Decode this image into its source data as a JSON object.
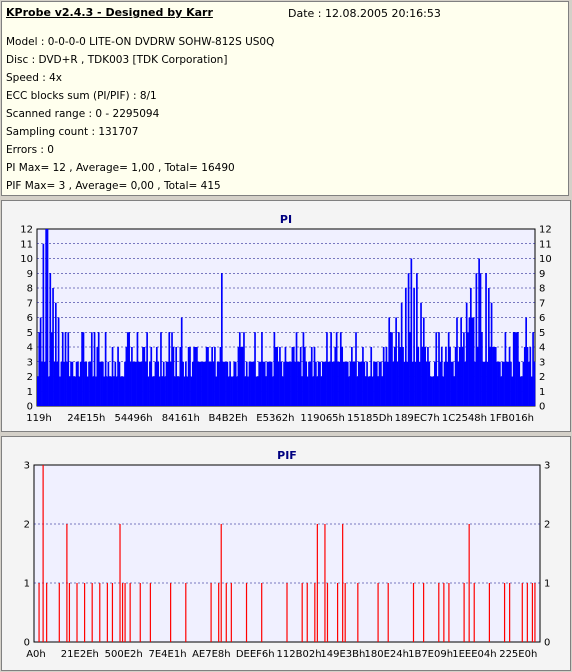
{
  "header": {
    "title": "KProbe v2.4.3 - Designed by Karr",
    "date": "Date : 12.08.2005 20:16:53",
    "lines": [
      "Model : 0-0-0-0 LITE-ON DVDRW SOHW-812S  US0Q",
      "Disc : DVD+R , TDK003 [TDK Corporation]",
      "Speed : 4x",
      "ECC blocks sum (PI/PIF) : 8/1",
      "Scanned range : 0 - 2295094",
      "Sampling count : 131707",
      "Errors : 0",
      "PI Max= 12 , Average= 1,00 , Total= 16490",
      "PIF Max= 3 , Average= 0,00 , Total= 415"
    ]
  },
  "colors": {
    "pi": "#0000ff",
    "pif": "#ff0000",
    "plot_bg": "#f0f0ff",
    "grid": "#000080"
  },
  "chart_data": [
    {
      "type": "bar",
      "title": "PI",
      "xlabel": "",
      "ylabel": "",
      "ylim": [
        0,
        12
      ],
      "yticks": [
        0,
        1,
        2,
        3,
        4,
        5,
        6,
        7,
        8,
        9,
        10,
        11,
        12
      ],
      "xtick_labels": [
        "119h",
        "24E15h",
        "54496h",
        "84161h",
        "B4B2Eh",
        "E5362h",
        "119065h",
        "15185Dh",
        "189EC7h",
        "1C2548h",
        "1FB016h"
      ],
      "grid": true,
      "baseline": 3,
      "n_samples": 360,
      "segments": [
        {
          "from": 0.0,
          "to": 0.06,
          "base": 3,
          "peaks": [
            [
              0.005,
              6
            ],
            [
              0.012,
              11
            ],
            [
              0.018,
              12
            ],
            [
              0.025,
              9
            ],
            [
              0.031,
              8
            ],
            [
              0.036,
              7
            ],
            [
              0.042,
              6
            ],
            [
              0.05,
              5
            ],
            [
              0.055,
              5
            ]
          ]
        },
        {
          "from": 0.06,
          "to": 0.7,
          "base": 3,
          "peaks": [
            [
              0.09,
              5
            ],
            [
              0.12,
              4
            ],
            [
              0.16,
              4
            ],
            [
              0.2,
              5
            ],
            [
              0.24,
              4
            ],
            [
              0.27,
              5
            ],
            [
              0.29,
              6
            ],
            [
              0.34,
              4
            ],
            [
              0.37,
              9
            ],
            [
              0.41,
              4
            ],
            [
              0.45,
              5
            ],
            [
              0.48,
              4
            ],
            [
              0.52,
              4
            ],
            [
              0.55,
              4
            ],
            [
              0.58,
              5
            ],
            [
              0.61,
              4
            ],
            [
              0.64,
              5
            ],
            [
              0.67,
              4
            ]
          ]
        },
        {
          "from": 0.7,
          "to": 0.78,
          "base": 4,
          "peaks": [
            [
              0.71,
              5
            ],
            [
              0.72,
              6
            ],
            [
              0.73,
              7
            ],
            [
              0.74,
              8
            ],
            [
              0.745,
              9
            ],
            [
              0.75,
              10
            ],
            [
              0.755,
              8
            ],
            [
              0.76,
              9
            ],
            [
              0.77,
              7
            ],
            [
              0.775,
              6
            ]
          ]
        },
        {
          "from": 0.78,
          "to": 0.84,
          "base": 3,
          "peaks": [
            [
              0.8,
              5
            ],
            [
              0.82,
              4
            ]
          ]
        },
        {
          "from": 0.84,
          "to": 0.92,
          "base": 4,
          "peaks": [
            [
              0.85,
              6
            ],
            [
              0.86,
              7
            ],
            [
              0.87,
              8
            ],
            [
              0.88,
              9
            ],
            [
              0.885,
              10
            ],
            [
              0.89,
              9
            ],
            [
              0.9,
              9
            ],
            [
              0.905,
              8
            ],
            [
              0.91,
              7
            ]
          ]
        },
        {
          "from": 0.92,
          "to": 1.0,
          "base": 3,
          "peaks": [
            [
              0.94,
              5
            ],
            [
              0.96,
              5
            ],
            [
              0.98,
              6
            ],
            [
              0.995,
              5
            ]
          ]
        }
      ]
    },
    {
      "type": "bar",
      "title": "PIF",
      "xlabel": "",
      "ylabel": "",
      "ylim": [
        0,
        3
      ],
      "yticks": [
        0,
        1,
        2,
        3
      ],
      "xtick_labels": [
        "A0h",
        "21E2Eh",
        "500E2h",
        "7E4E1h",
        "AE7E8h",
        "DEEF6h",
        "112B02h",
        "149E3Bh",
        "180E24h",
        "1B7E09h",
        "1EEE04h",
        "225E0h"
      ],
      "grid": true,
      "spikes": [
        [
          0.01,
          1
        ],
        [
          0.018,
          3
        ],
        [
          0.025,
          1
        ],
        [
          0.05,
          1
        ],
        [
          0.065,
          2
        ],
        [
          0.07,
          1
        ],
        [
          0.085,
          1
        ],
        [
          0.1,
          1
        ],
        [
          0.115,
          1
        ],
        [
          0.13,
          1
        ],
        [
          0.145,
          1
        ],
        [
          0.155,
          1
        ],
        [
          0.17,
          2
        ],
        [
          0.175,
          1
        ],
        [
          0.18,
          1
        ],
        [
          0.19,
          1
        ],
        [
          0.21,
          1
        ],
        [
          0.23,
          1
        ],
        [
          0.27,
          1
        ],
        [
          0.3,
          1
        ],
        [
          0.35,
          1
        ],
        [
          0.365,
          1
        ],
        [
          0.37,
          2
        ],
        [
          0.38,
          1
        ],
        [
          0.39,
          1
        ],
        [
          0.42,
          1
        ],
        [
          0.45,
          1
        ],
        [
          0.5,
          1
        ],
        [
          0.53,
          1
        ],
        [
          0.54,
          1
        ],
        [
          0.555,
          1
        ],
        [
          0.56,
          2
        ],
        [
          0.575,
          2
        ],
        [
          0.58,
          1
        ],
        [
          0.6,
          1
        ],
        [
          0.61,
          2
        ],
        [
          0.615,
          1
        ],
        [
          0.64,
          1
        ],
        [
          0.68,
          1
        ],
        [
          0.7,
          1
        ],
        [
          0.75,
          1
        ],
        [
          0.77,
          1
        ],
        [
          0.8,
          1
        ],
        [
          0.81,
          1
        ],
        [
          0.82,
          1
        ],
        [
          0.85,
          1
        ],
        [
          0.86,
          2
        ],
        [
          0.87,
          1
        ],
        [
          0.9,
          1
        ],
        [
          0.93,
          1
        ],
        [
          0.94,
          1
        ],
        [
          0.965,
          1
        ],
        [
          0.975,
          1
        ],
        [
          0.985,
          1
        ],
        [
          0.99,
          1
        ]
      ]
    }
  ]
}
